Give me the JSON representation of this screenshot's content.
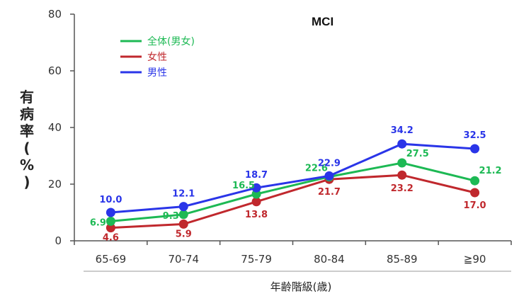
{
  "chart_data": {
    "type": "line",
    "title": "MCI",
    "ylabel": "有病率(%)",
    "xlabel": "年齢階級(歳)",
    "ylim": [
      0,
      80
    ],
    "yticks": [
      "0",
      "20",
      "40",
      "60",
      "80"
    ],
    "categories": [
      "65-69",
      "70-74",
      "75-79",
      "80-84",
      "85-89",
      "≧90"
    ],
    "legend_position": "top-left",
    "series": [
      {
        "name": "全体(男女)",
        "color": "#1db954",
        "values": [
          6.9,
          9.3,
          16.5,
          22.6,
          27.5,
          21.2
        ],
        "labels": [
          "6.9",
          "9.3",
          "16.5",
          "22.6",
          "27.5",
          "21.2"
        ]
      },
      {
        "name": "女性",
        "color": "#c0282d",
        "values": [
          4.6,
          5.9,
          13.8,
          21.7,
          23.2,
          17.0
        ],
        "labels": [
          "4.6",
          "5.9",
          "13.8",
          "21.7",
          "23.2",
          "17.0"
        ]
      },
      {
        "name": "男性",
        "color": "#2a35e8",
        "values": [
          10.0,
          12.1,
          18.7,
          22.9,
          34.2,
          32.5
        ],
        "labels": [
          "10.0",
          "12.1",
          "18.7",
          "22.9",
          "34.2",
          "32.5"
        ]
      }
    ]
  }
}
